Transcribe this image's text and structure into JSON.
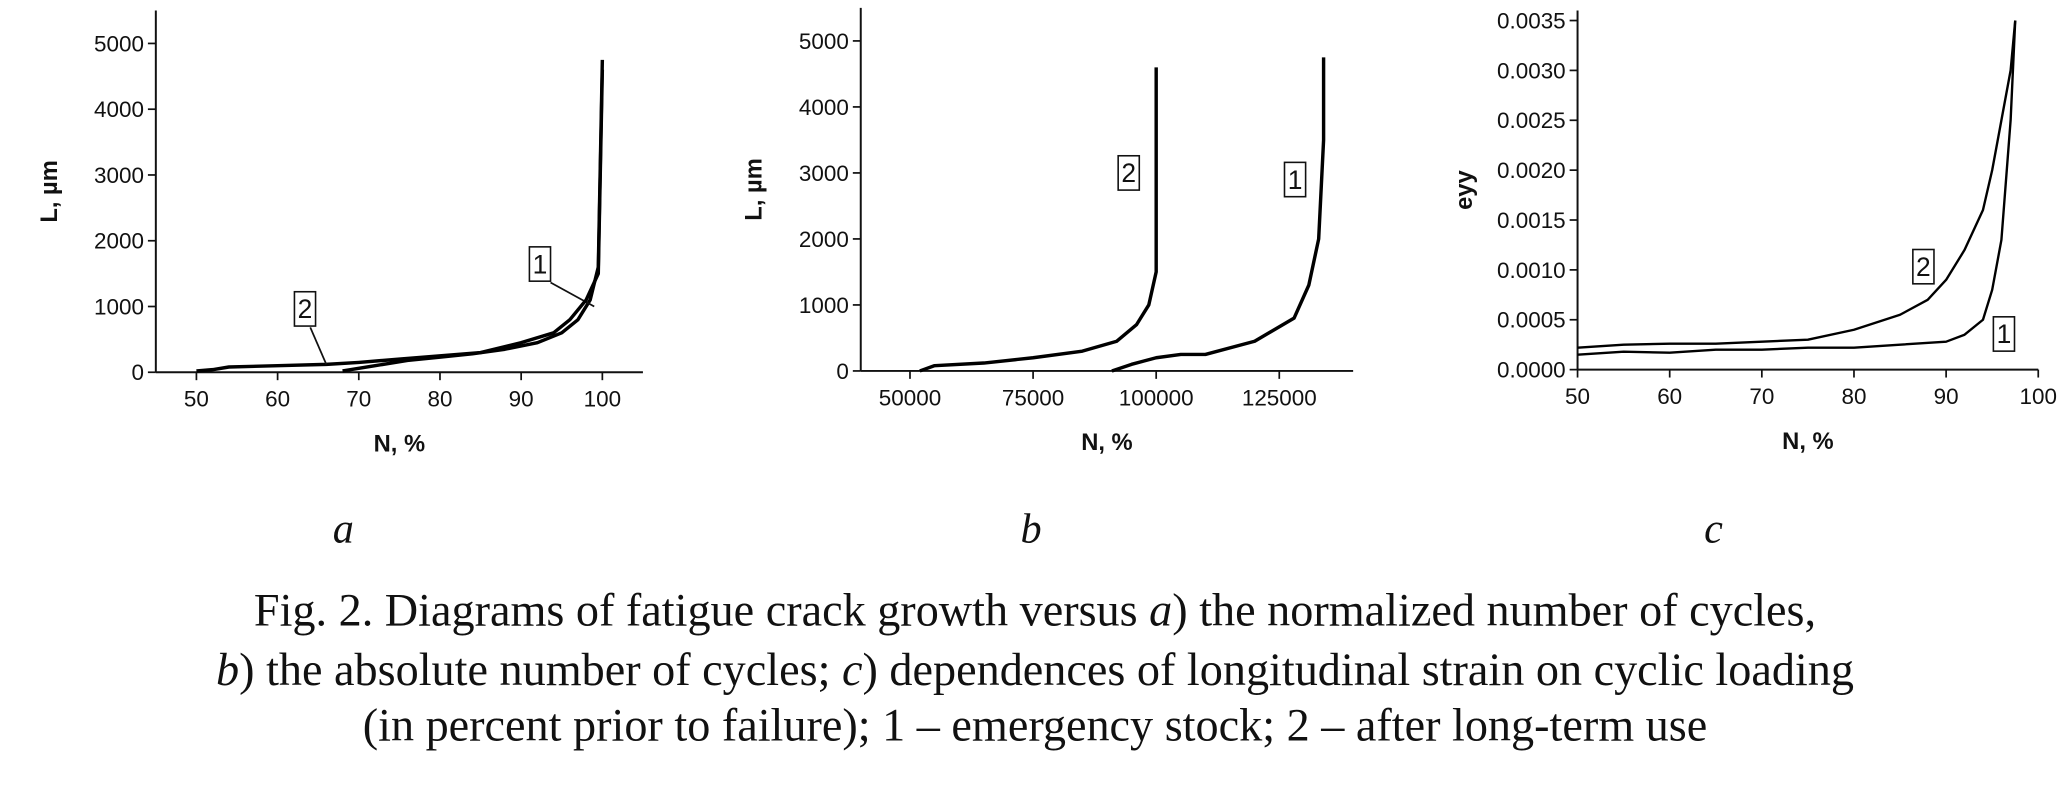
{
  "chart_data": [
    {
      "type": "line",
      "panel": "a",
      "x_label": "N, %",
      "y_label": "L, µm",
      "xlim": [
        45,
        105
      ],
      "xticks": [
        50,
        60,
        70,
        80,
        90,
        100
      ],
      "ylim": [
        0,
        5500
      ],
      "yticks": [
        0,
        1000,
        2000,
        3000,
        4000,
        5000
      ],
      "series": [
        {
          "name": "1",
          "color": "#000000",
          "x": [
            68,
            72,
            76,
            80,
            84,
            88,
            92,
            95,
            97,
            98.5,
            99.5,
            100
          ],
          "values": [
            20,
            100,
            180,
            230,
            280,
            350,
            450,
            600,
            800,
            1100,
            1600,
            4750
          ]
        },
        {
          "name": "2",
          "color": "#000000",
          "x": [
            50,
            52,
            54,
            60,
            66,
            70,
            75,
            80,
            85,
            90,
            94,
            96,
            98,
            99.5,
            100
          ],
          "values": [
            20,
            40,
            80,
            100,
            120,
            150,
            200,
            250,
            300,
            450,
            600,
            800,
            1100,
            1500,
            4600
          ]
        }
      ]
    },
    {
      "type": "line",
      "panel": "b",
      "x_label": "N, %",
      "y_label": "L, µm",
      "xlim": [
        40000,
        140000
      ],
      "xticks": [
        50000,
        75000,
        100000,
        125000
      ],
      "ylim": [
        0,
        5500
      ],
      "yticks": [
        0,
        1000,
        2000,
        3000,
        4000,
        5000
      ],
      "series": [
        {
          "name": "1",
          "color": "#000000",
          "x": [
            91000,
            95000,
            100000,
            105000,
            110000,
            120000,
            128000,
            131000,
            133000,
            134000,
            134000
          ],
          "values": [
            0,
            100,
            200,
            250,
            250,
            450,
            800,
            1300,
            2000,
            3500,
            4750
          ]
        },
        {
          "name": "2",
          "color": "#000000",
          "x": [
            52000,
            55000,
            65000,
            75000,
            85000,
            92000,
            96000,
            98500,
            100000,
            100000
          ],
          "values": [
            0,
            80,
            120,
            200,
            300,
            450,
            700,
            1000,
            1500,
            4600
          ]
        }
      ]
    },
    {
      "type": "line",
      "panel": "c",
      "x_label": "N, %",
      "y_label": "eyy",
      "xlim": [
        50,
        100
      ],
      "xticks": [
        50,
        60,
        70,
        80,
        90,
        100
      ],
      "ylim": [
        0,
        0.0036
      ],
      "yticks": [
        {
          "value": 0,
          "label": "0.0000"
        },
        {
          "value": 0.0005,
          "label": "0.0005"
        },
        {
          "value": 0.001,
          "label": "0.0010"
        },
        {
          "value": 0.0015,
          "label": "0.0015"
        },
        {
          "value": 0.002,
          "label": "0.0020"
        },
        {
          "value": 0.0025,
          "label": "0.0025"
        },
        {
          "value": 0.003,
          "label": "0.0030"
        },
        {
          "value": 0.0035,
          "label": "0.0035"
        }
      ],
      "series": [
        {
          "name": "1",
          "color": "#000000",
          "x": [
            50,
            55,
            60,
            65,
            70,
            75,
            80,
            85,
            90,
            92,
            94,
            95,
            96,
            97,
            97.5
          ],
          "values": [
            0.00015,
            0.00018,
            0.00017,
            0.0002,
            0.0002,
            0.00022,
            0.00022,
            0.00025,
            0.00028,
            0.00035,
            0.0005,
            0.0008,
            0.0013,
            0.0025,
            0.0035
          ]
        },
        {
          "name": "2",
          "color": "#000000",
          "x": [
            50,
            55,
            60,
            65,
            70,
            75,
            80,
            85,
            88,
            90,
            92,
            94,
            95,
            96,
            97,
            97.5
          ],
          "values": [
            0.00022,
            0.00025,
            0.00026,
            0.00026,
            0.00028,
            0.0003,
            0.0004,
            0.00055,
            0.0007,
            0.0009,
            0.0012,
            0.0016,
            0.002,
            0.0025,
            0.003,
            0.0035
          ]
        }
      ]
    }
  ],
  "caption": [
    [
      {
        "text": "Fig. 2. Diagrams of fatigue crack growth versus ",
        "italic": false
      },
      {
        "text": "a",
        "italic": true
      },
      {
        "text": ") the normalized number of cycles,",
        "italic": false
      }
    ],
    [
      {
        "text": "b",
        "italic": true
      },
      {
        "text": ") the absolute number of cycles; ",
        "italic": false
      },
      {
        "text": "c",
        "italic": true
      },
      {
        "text": ") dependences of longitudinal strain on cyclic loading",
        "italic": false
      }
    ],
    [
      {
        "text": "(in percent prior to failure); 1 – emergency stock; 2 – after long-term use",
        "italic": false
      }
    ]
  ]
}
